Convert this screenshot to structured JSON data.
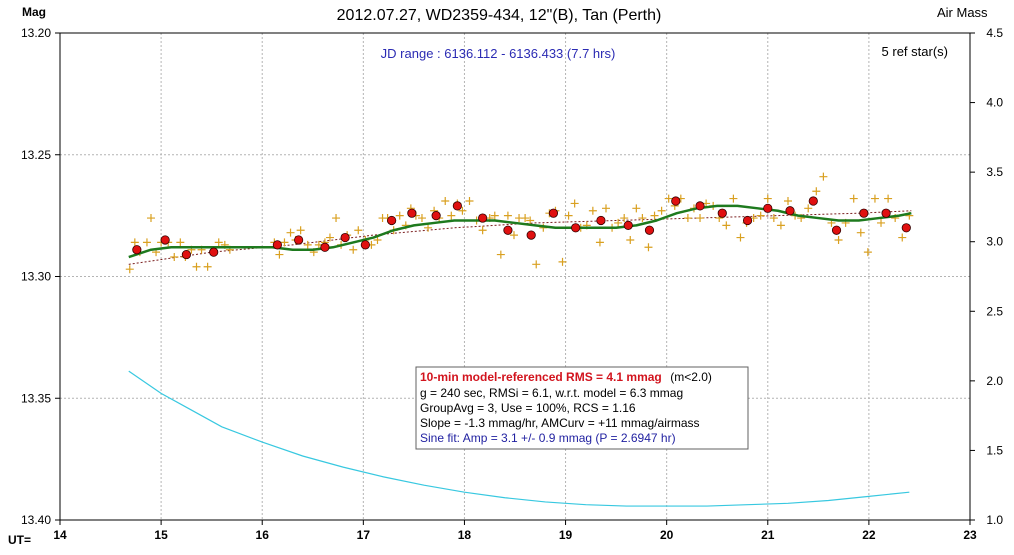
{
  "chart_data": {
    "type": "scatter",
    "title": "2012.07.27, WD2359-434, 12\"(B), Tan (Perth)",
    "ylabel_left": "Mag",
    "ylabel_right": "Air Mass",
    "xlabel": "UT=",
    "xlim": [
      14,
      23
    ],
    "ylim_mag": [
      13.2,
      13.4
    ],
    "ylim_airmass": [
      1.0,
      4.5
    ],
    "y_inverted": true,
    "grid": true,
    "x_ticks": [
      "14",
      "15",
      "16",
      "17",
      "18",
      "19",
      "20",
      "21",
      "22",
      "23"
    ],
    "x_tick_values": [
      14,
      15,
      16,
      17,
      18,
      19,
      20,
      21,
      22,
      23
    ],
    "y_ticks_left": [
      "13.20",
      "13.25",
      "13.30",
      "13.35",
      "13.40"
    ],
    "y_tick_values_left": [
      13.2,
      13.25,
      13.3,
      13.35,
      13.4
    ],
    "y_ticks_right": [
      "4.5",
      "4.0",
      "3.5",
      "3.0",
      "2.5",
      "2.0",
      "1.5",
      "1.0"
    ],
    "y_tick_values_right": [
      4.5,
      4.0,
      3.5,
      3.0,
      2.5,
      2.0,
      1.5,
      1.0
    ],
    "jd_range_text": "JD range : 6136.112 - 6136.433 (7.7 hrs)",
    "ref_stars_text": "5 ref star(s)",
    "info_box": {
      "line1_red": "10-min model-referenced RMS = 4.1 mmag",
      "line1_suffix": "(m<2.0)",
      "line2": "g = 240 sec, RMSi = 6.1, w.r.t. model = 6.3 mmag",
      "line3": "GroupAvg = 3, Use = 100%, RCS = 1.16",
      "line4": "Slope = -1.3 mmag/hr, AMCurv = +11 mmag/airmass",
      "line5_blue": "Sine fit: Amp = 3.1 +/- 0.9 mmag (P = 2.6947 hr)"
    },
    "colors": {
      "raw": "#d9a020",
      "group": "#e01010",
      "model": "#1e7a1e",
      "trend": "#7a1e1e",
      "airmass": "#38c8e0",
      "grid": "#b4b4b4"
    },
    "series": [
      {
        "kind": "raw",
        "x": [
          14.69,
          14.74,
          14.79,
          14.86,
          14.9,
          14.95,
          15.0,
          15.07,
          15.13,
          15.19,
          15.24,
          15.3,
          15.35,
          15.4,
          15.46,
          15.52,
          15.57,
          15.63,
          15.68,
          16.12,
          16.17,
          16.22,
          16.28,
          16.33,
          16.38,
          16.45,
          16.51,
          16.56,
          16.62,
          16.67,
          16.73,
          16.78,
          16.84,
          16.9,
          16.95,
          17.02,
          17.08,
          17.14,
          17.19,
          17.24,
          17.3,
          17.36,
          17.42,
          17.47,
          17.52,
          17.58,
          17.64,
          17.7,
          17.75,
          17.81,
          17.87,
          17.93,
          17.98,
          18.05,
          18.12,
          18.18,
          18.25,
          18.3,
          18.36,
          18.43,
          18.49,
          18.54,
          18.6,
          18.65,
          18.71,
          18.78,
          18.84,
          18.9,
          18.97,
          19.03,
          19.09,
          19.15,
          19.21,
          19.27,
          19.34,
          19.4,
          19.46,
          19.52,
          19.58,
          19.64,
          19.7,
          19.76,
          19.82,
          19.88,
          19.95,
          20.02,
          20.08,
          20.14,
          20.21,
          20.27,
          20.33,
          20.39,
          20.46,
          20.52,
          20.59,
          20.66,
          20.73,
          20.79,
          20.86,
          20.93,
          21.0,
          21.06,
          21.13,
          21.2,
          21.27,
          21.33,
          21.4,
          21.48,
          21.55,
          21.63,
          21.7,
          21.77,
          21.85,
          21.92,
          21.99,
          22.06,
          22.12,
          22.19,
          22.26,
          22.33,
          22.4
        ],
        "y": [
          13.297,
          13.286,
          13.29,
          13.286,
          13.276,
          13.29,
          13.286,
          13.286,
          13.292,
          13.286,
          13.292,
          13.289,
          13.296,
          13.289,
          13.296,
          13.29,
          13.286,
          13.287,
          13.289,
          13.286,
          13.291,
          13.286,
          13.282,
          13.285,
          13.281,
          13.287,
          13.29,
          13.287,
          13.286,
          13.284,
          13.276,
          13.287,
          13.283,
          13.289,
          13.281,
          13.285,
          13.287,
          13.285,
          13.276,
          13.276,
          13.281,
          13.275,
          13.279,
          13.272,
          13.275,
          13.276,
          13.28,
          13.273,
          13.276,
          13.269,
          13.275,
          13.27,
          13.273,
          13.269,
          13.277,
          13.281,
          13.276,
          13.275,
          13.291,
          13.275,
          13.283,
          13.276,
          13.276,
          13.277,
          13.295,
          13.28,
          13.274,
          13.273,
          13.294,
          13.275,
          13.27,
          13.28,
          13.279,
          13.273,
          13.286,
          13.272,
          13.28,
          13.278,
          13.276,
          13.285,
          13.272,
          13.276,
          13.288,
          13.275,
          13.273,
          13.268,
          13.271,
          13.268,
          13.276,
          13.272,
          13.276,
          13.27,
          13.271,
          13.276,
          13.279,
          13.268,
          13.284,
          13.278,
          13.276,
          13.275,
          13.268,
          13.276,
          13.279,
          13.269,
          13.275,
          13.276,
          13.272,
          13.265,
          13.259,
          13.278,
          13.285,
          13.278,
          13.268,
          13.282,
          13.29,
          13.268,
          13.278,
          13.268,
          13.276,
          13.284,
          13.275
        ]
      },
      {
        "kind": "group",
        "x": [
          14.76,
          15.04,
          15.25,
          15.52,
          16.15,
          16.36,
          16.62,
          16.82,
          17.02,
          17.28,
          17.48,
          17.72,
          17.93,
          18.18,
          18.43,
          18.66,
          18.88,
          19.1,
          19.35,
          19.62,
          19.83,
          20.09,
          20.33,
          20.55,
          20.8,
          21.0,
          21.22,
          21.45,
          21.68,
          21.95,
          22.17,
          22.37
        ],
        "y": [
          13.289,
          13.285,
          13.291,
          13.29,
          13.287,
          13.285,
          13.288,
          13.284,
          13.287,
          13.277,
          13.274,
          13.275,
          13.271,
          13.276,
          13.281,
          13.283,
          13.274,
          13.28,
          13.277,
          13.279,
          13.281,
          13.269,
          13.271,
          13.274,
          13.277,
          13.272,
          13.273,
          13.269,
          13.281,
          13.274,
          13.274,
          13.28
        ]
      },
      {
        "kind": "model",
        "x": [
          14.68,
          14.9,
          15.1,
          15.3,
          15.5,
          15.7,
          15.9,
          16.1,
          16.3,
          16.5,
          16.7,
          16.9,
          17.1,
          17.3,
          17.5,
          17.7,
          17.9,
          18.1,
          18.3,
          18.5,
          18.7,
          18.9,
          19.1,
          19.3,
          19.5,
          19.7,
          19.9,
          20.1,
          20.3,
          20.5,
          20.7,
          20.9,
          21.1,
          21.3,
          21.5,
          21.7,
          21.9,
          22.1,
          22.3,
          22.42
        ],
        "y": [
          13.292,
          13.289,
          13.288,
          13.288,
          13.288,
          13.288,
          13.288,
          13.288,
          13.289,
          13.289,
          13.288,
          13.286,
          13.284,
          13.281,
          13.279,
          13.278,
          13.277,
          13.277,
          13.277,
          13.278,
          13.279,
          13.28,
          13.28,
          13.28,
          13.28,
          13.279,
          13.277,
          13.274,
          13.272,
          13.271,
          13.271,
          13.272,
          13.273,
          13.275,
          13.276,
          13.277,
          13.277,
          13.276,
          13.275,
          13.274
        ]
      },
      {
        "kind": "trend",
        "x": [
          14.68,
          15.5,
          16.3,
          17.1,
          17.9,
          18.7,
          19.5,
          20.3,
          21.1,
          21.9,
          22.42
        ],
        "y": [
          13.295,
          13.29,
          13.287,
          13.283,
          13.28,
          13.278,
          13.277,
          13.276,
          13.275,
          13.274,
          13.273
        ]
      },
      {
        "kind": "airmass",
        "x": [
          14.68,
          15.0,
          15.3,
          15.6,
          16.0,
          16.4,
          16.8,
          17.2,
          17.6,
          18.0,
          18.4,
          18.8,
          19.2,
          19.6,
          20.0,
          20.4,
          20.8,
          21.2,
          21.6,
          22.0,
          22.4
        ],
        "y": [
          2.07,
          1.91,
          1.79,
          1.67,
          1.56,
          1.46,
          1.38,
          1.31,
          1.25,
          1.2,
          1.16,
          1.13,
          1.11,
          1.1,
          1.1,
          1.1,
          1.11,
          1.12,
          1.14,
          1.17,
          1.2
        ]
      }
    ]
  }
}
